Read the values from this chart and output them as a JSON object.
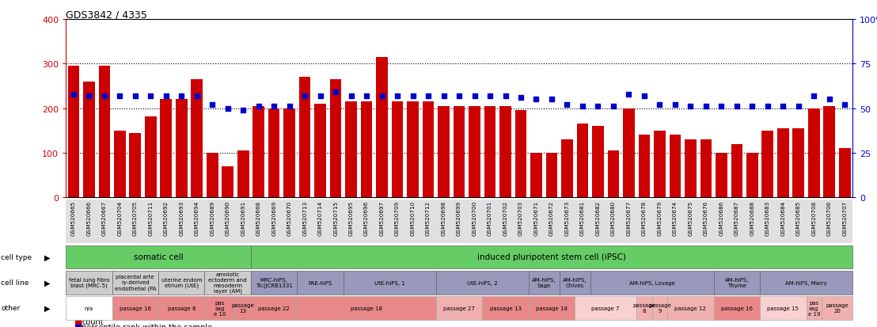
{
  "title": "GDS3842 / 4335",
  "samples": [
    "GSM520665",
    "GSM520666",
    "GSM520667",
    "GSM520704",
    "GSM520705",
    "GSM520711",
    "GSM520692",
    "GSM520693",
    "GSM520694",
    "GSM520689",
    "GSM520690",
    "GSM520691",
    "GSM520668",
    "GSM520669",
    "GSM520670",
    "GSM520713",
    "GSM520714",
    "GSM520715",
    "GSM520695",
    "GSM520696",
    "GSM520697",
    "GSM520709",
    "GSM520710",
    "GSM520712",
    "GSM520698",
    "GSM520699",
    "GSM520700",
    "GSM520701",
    "GSM520702",
    "GSM520703",
    "GSM520671",
    "GSM520672",
    "GSM520673",
    "GSM520681",
    "GSM520682",
    "GSM520680",
    "GSM520677",
    "GSM520678",
    "GSM520679",
    "GSM520674",
    "GSM520675",
    "GSM520676",
    "GSM520686",
    "GSM520687",
    "GSM520688",
    "GSM520683",
    "GSM520684",
    "GSM520685",
    "GSM520708",
    "GSM520706",
    "GSM520707"
  ],
  "counts": [
    295,
    260,
    295,
    150,
    145,
    182,
    220,
    220,
    265,
    100,
    70,
    105,
    205,
    200,
    200,
    270,
    210,
    265,
    215,
    215,
    315,
    215,
    215,
    215,
    205,
    205,
    205,
    205,
    205,
    195,
    100,
    100,
    130,
    165,
    160,
    105,
    200,
    140,
    150,
    140,
    130,
    130,
    100,
    120,
    100,
    150,
    155,
    155,
    200,
    205,
    110
  ],
  "percentiles": [
    58,
    57,
    57,
    57,
    57,
    57,
    57,
    57,
    57,
    52,
    50,
    49,
    51,
    51,
    51,
    57,
    57,
    59,
    57,
    57,
    57,
    57,
    57,
    57,
    57,
    57,
    57,
    57,
    57,
    56,
    55,
    55,
    52,
    51,
    51,
    51,
    58,
    57,
    52,
    52,
    51,
    51,
    51,
    51,
    51,
    51,
    51,
    51,
    57,
    55,
    52
  ],
  "bar_color": "#cc0000",
  "dot_color": "#0000cc",
  "bg_color": "#ffffff",
  "cell_type_groups": [
    {
      "label": "somatic cell",
      "start": 0,
      "end": 11,
      "color": "#66cc66"
    },
    {
      "label": "induced pluripotent stem cell (iPSC)",
      "start": 12,
      "end": 50,
      "color": "#66cc66"
    }
  ],
  "cell_line_groups": [
    {
      "label": "fetal lung fibro\nblast (MRC-5)",
      "start": 0,
      "end": 2,
      "color": "#d4d4d4"
    },
    {
      "label": "placental arte\nry-derived\nendothelial (PA",
      "start": 3,
      "end": 5,
      "color": "#d4d4d4"
    },
    {
      "label": "uterine endom\netrium (UtE)",
      "start": 6,
      "end": 8,
      "color": "#d4d4d4"
    },
    {
      "label": "amniotic\nectoderm and\nmesoderm\nlayer (AM)",
      "start": 9,
      "end": 11,
      "color": "#d4d4d4"
    },
    {
      "label": "MRC-hiPS,\nTic(JCRB1331",
      "start": 12,
      "end": 14,
      "color": "#9999cc"
    },
    {
      "label": "PAE-hiPS",
      "start": 15,
      "end": 17,
      "color": "#9999cc"
    },
    {
      "label": "UtE-hiPS, 1",
      "start": 18,
      "end": 23,
      "color": "#9999cc"
    },
    {
      "label": "UtE-hiPS, 2",
      "start": 24,
      "end": 29,
      "color": "#9999cc"
    },
    {
      "label": "AM-hiPS,\nSage",
      "start": 30,
      "end": 31,
      "color": "#9999cc"
    },
    {
      "label": "AM-hiPS,\nChives",
      "start": 32,
      "end": 33,
      "color": "#9999cc"
    },
    {
      "label": "AM-hiPS, Lovage",
      "start": 34,
      "end": 41,
      "color": "#9999cc"
    },
    {
      "label": "AM-hiPS,\nThyme",
      "start": 42,
      "end": 44,
      "color": "#9999cc"
    },
    {
      "label": "AM-hiPS, Marry",
      "start": 45,
      "end": 50,
      "color": "#9999cc"
    }
  ],
  "other_groups": [
    {
      "label": "n/a",
      "start": 0,
      "end": 2,
      "color": "#ffffff"
    },
    {
      "label": "passage 16",
      "start": 3,
      "end": 5,
      "color": "#e88888"
    },
    {
      "label": "passage 8",
      "start": 6,
      "end": 8,
      "color": "#e88888"
    },
    {
      "label": "pas\nsag\ne 10",
      "start": 9,
      "end": 10,
      "color": "#e88888"
    },
    {
      "label": "passage\n13",
      "start": 11,
      "end": 11,
      "color": "#e88888"
    },
    {
      "label": "passage 22",
      "start": 12,
      "end": 14,
      "color": "#e88888"
    },
    {
      "label": "passage 18",
      "start": 15,
      "end": 23,
      "color": "#e88888"
    },
    {
      "label": "passage 27",
      "start": 24,
      "end": 26,
      "color": "#f0b0b0"
    },
    {
      "label": "passage 13",
      "start": 27,
      "end": 29,
      "color": "#e88888"
    },
    {
      "label": "passage 18",
      "start": 30,
      "end": 32,
      "color": "#e88888"
    },
    {
      "label": "passage 7",
      "start": 33,
      "end": 36,
      "color": "#f8d0d0"
    },
    {
      "label": "passage\n8",
      "start": 37,
      "end": 37,
      "color": "#f0b0b0"
    },
    {
      "label": "passage\n9",
      "start": 38,
      "end": 38,
      "color": "#f0b0b0"
    },
    {
      "label": "passage 12",
      "start": 39,
      "end": 41,
      "color": "#f0b0b0"
    },
    {
      "label": "passage 16",
      "start": 42,
      "end": 44,
      "color": "#e88888"
    },
    {
      "label": "passage 15",
      "start": 45,
      "end": 47,
      "color": "#f8d0d0"
    },
    {
      "label": "pas\nsag\ne 19",
      "start": 48,
      "end": 48,
      "color": "#f0b0b0"
    },
    {
      "label": "passage\n20",
      "start": 49,
      "end": 50,
      "color": "#f0b0b0"
    }
  ]
}
